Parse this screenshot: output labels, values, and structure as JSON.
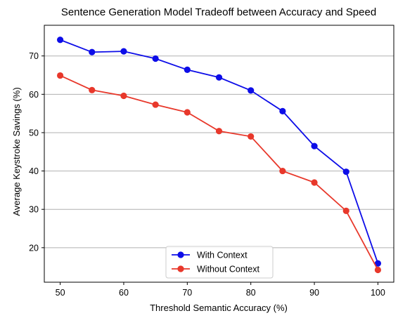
{
  "chart_data": {
    "type": "line",
    "title": "Sentence Generation Model Tradeoff between Accuracy and Speed",
    "xlabel": "Threshold Semantic Accuracy (%)",
    "ylabel": "Average Keystroke Savings (%)",
    "x": [
      50,
      55,
      60,
      65,
      70,
      75,
      80,
      85,
      90,
      95,
      100
    ],
    "xlim": [
      47.5,
      102.5
    ],
    "ylim": [
      11,
      78
    ],
    "xticks": [
      "50",
      "60",
      "70",
      "80",
      "90",
      "100"
    ],
    "yticks": [
      "20",
      "30",
      "40",
      "50",
      "60",
      "70"
    ],
    "grid": "horizontal",
    "legend_position": "bottom-center",
    "series": [
      {
        "name": "With Context",
        "color": "#0d0de8",
        "values": [
          74.2,
          71.0,
          71.2,
          69.3,
          66.4,
          64.4,
          61.0,
          55.6,
          46.5,
          39.8,
          15.9
        ]
      },
      {
        "name": "Without Context",
        "color": "#e8382b",
        "values": [
          64.9,
          61.1,
          59.6,
          57.3,
          55.3,
          50.4,
          49.0,
          40.0,
          37.0,
          29.6,
          14.2
        ]
      }
    ]
  }
}
